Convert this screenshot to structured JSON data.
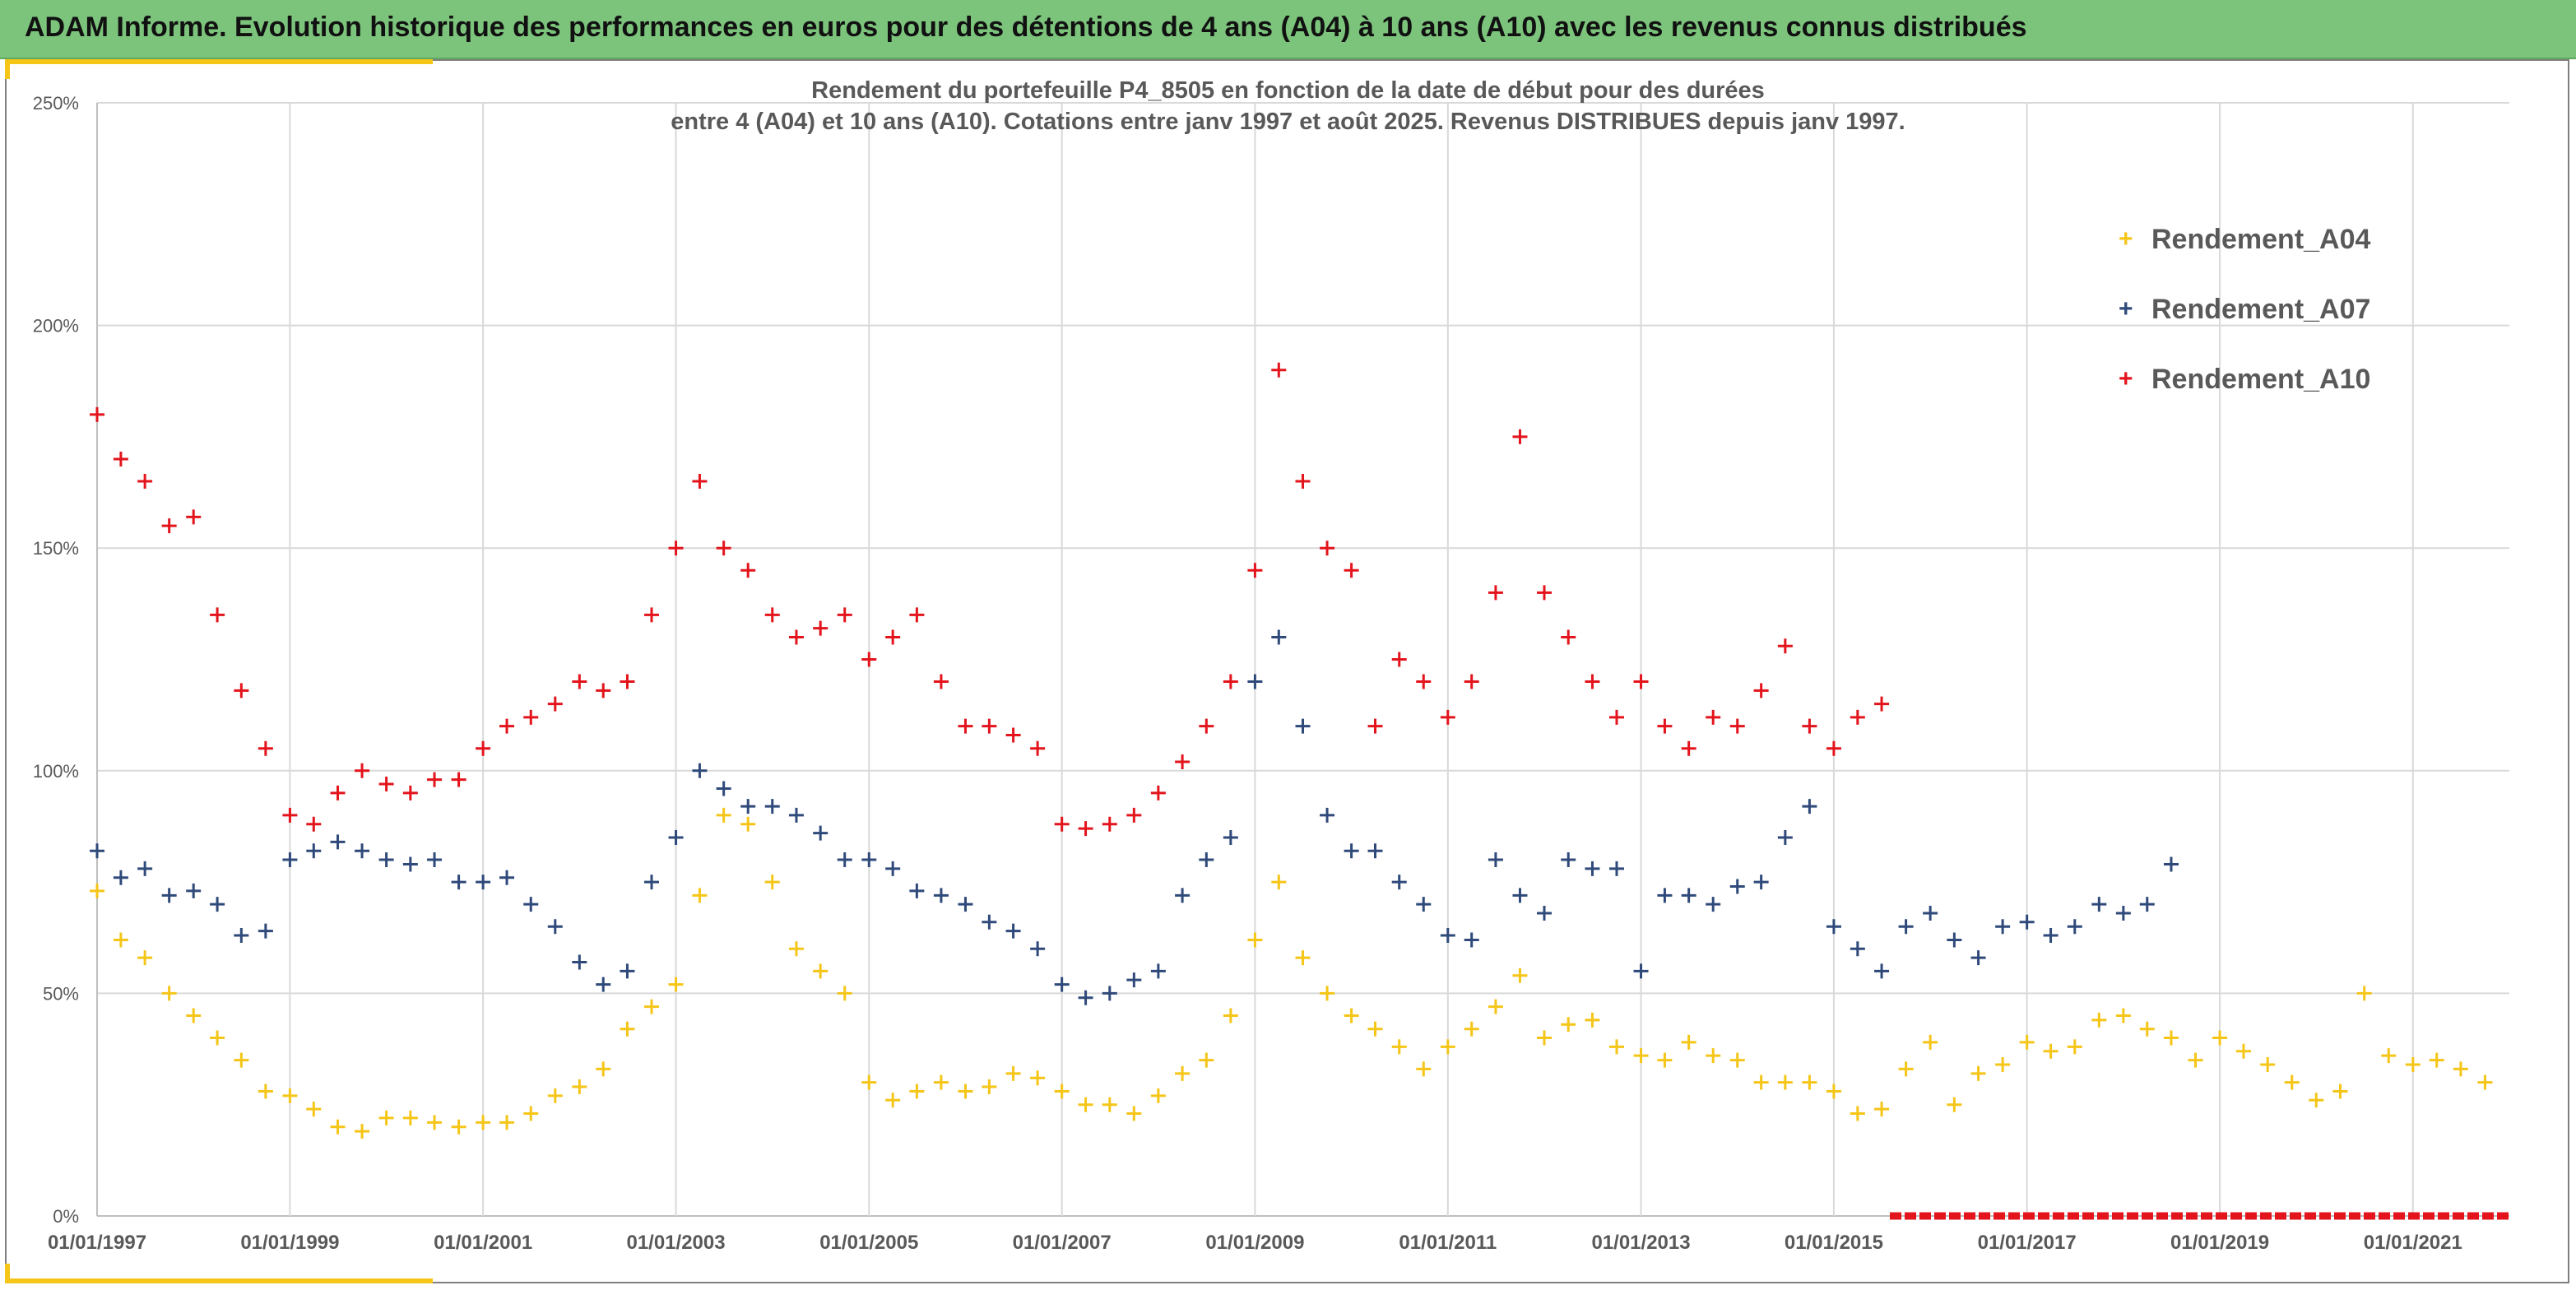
{
  "header": {
    "title": "ADAM Informe. Evolution historique des performances en euros pour des détentions de 4 ans (A04) à 10 ans (A10) avec les revenus connus distribués"
  },
  "colors": {
    "banner": "#7cc47c",
    "accent": "#f5c518",
    "A04": "#f5c518",
    "A07": "#2f4a7a",
    "A10": "#e3141c",
    "grid": "#d9d9d9",
    "axis_text": "#595959"
  },
  "chart_data": {
    "type": "scatter",
    "title": "Rendement du portefeuille P4_8505 en fonction de la date de début pour des durées",
    "subtitle": "entre 4 (A04) et 10 ans (A10). Cotations entre janv 1997 et août 2025. Revenus DISTRIBUES depuis janv 1997.",
    "xlabel": "",
    "ylabel": "",
    "x_axis_type": "date",
    "xlim": [
      "1997-01-01",
      "2022-01-01"
    ],
    "x_ticks": [
      "01/01/1997",
      "01/01/1999",
      "01/01/2001",
      "01/01/2003",
      "01/01/2005",
      "01/01/2007",
      "01/01/2009",
      "01/01/2011",
      "01/01/2013",
      "01/01/2015",
      "01/01/2017",
      "01/01/2019",
      "01/01/2021"
    ],
    "ylim": [
      0,
      2.5
    ],
    "y_ticks": [
      "0%",
      "50%",
      "100%",
      "150%",
      "200%",
      "250%"
    ],
    "grid": true,
    "legend_position": "top-right",
    "marker": "+",
    "series": [
      {
        "name": "Rendement_A04",
        "color": "#f5c518",
        "x": [
          "1997-01-01",
          "1997-04-01",
          "1997-07-01",
          "1997-10-01",
          "1998-01-01",
          "1998-04-01",
          "1998-07-01",
          "1998-10-01",
          "1999-01-01",
          "1999-04-01",
          "1999-07-01",
          "1999-10-01",
          "2000-01-01",
          "2000-04-01",
          "2000-07-01",
          "2000-10-01",
          "2001-01-01",
          "2001-04-01",
          "2001-07-01",
          "2001-10-01",
          "2002-01-01",
          "2002-04-01",
          "2002-07-01",
          "2002-10-01",
          "2003-01-01",
          "2003-04-01",
          "2003-07-01",
          "2003-10-01",
          "2004-01-01",
          "2004-04-01",
          "2004-07-01",
          "2004-10-01",
          "2005-01-01",
          "2005-04-01",
          "2005-07-01",
          "2005-10-01",
          "2006-01-01",
          "2006-04-01",
          "2006-07-01",
          "2006-10-01",
          "2007-01-01",
          "2007-04-01",
          "2007-07-01",
          "2007-10-01",
          "2008-01-01",
          "2008-04-01",
          "2008-07-01",
          "2008-10-01",
          "2009-01-01",
          "2009-04-01",
          "2009-07-01",
          "2009-10-01",
          "2010-01-01",
          "2010-04-01",
          "2010-07-01",
          "2010-10-01",
          "2011-01-01",
          "2011-04-01",
          "2011-07-01",
          "2011-10-01",
          "2012-01-01",
          "2012-04-01",
          "2012-07-01",
          "2012-10-01",
          "2013-01-01",
          "2013-04-01",
          "2013-07-01",
          "2013-10-01",
          "2014-01-01",
          "2014-04-01",
          "2014-07-01",
          "2014-10-01",
          "2015-01-01",
          "2015-04-01",
          "2015-07-01",
          "2015-10-01",
          "2016-01-01",
          "2016-04-01",
          "2016-07-01",
          "2016-10-01",
          "2017-01-01",
          "2017-04-01",
          "2017-07-01",
          "2017-10-01",
          "2018-01-01",
          "2018-04-01",
          "2018-07-01",
          "2018-10-01",
          "2019-01-01",
          "2019-04-01",
          "2019-07-01",
          "2019-10-01",
          "2020-01-01",
          "2020-04-01",
          "2020-07-01",
          "2020-10-01",
          "2021-01-01",
          "2021-04-01",
          "2021-07-01",
          "2021-10-01"
        ],
        "y": [
          0.73,
          0.62,
          0.58,
          0.5,
          0.45,
          0.4,
          0.35,
          0.28,
          0.27,
          0.24,
          0.2,
          0.19,
          0.22,
          0.22,
          0.21,
          0.2,
          0.21,
          0.21,
          0.23,
          0.27,
          0.29,
          0.33,
          0.42,
          0.47,
          0.52,
          0.72,
          0.9,
          0.88,
          0.75,
          0.6,
          0.55,
          0.5,
          0.3,
          0.26,
          0.28,
          0.3,
          0.28,
          0.29,
          0.32,
          0.31,
          0.28,
          0.25,
          0.25,
          0.23,
          0.27,
          0.32,
          0.35,
          0.45,
          0.62,
          0.75,
          0.58,
          0.5,
          0.45,
          0.42,
          0.38,
          0.33,
          0.38,
          0.42,
          0.47,
          0.54,
          0.4,
          0.43,
          0.44,
          0.38,
          0.36,
          0.35,
          0.39,
          0.36,
          0.35,
          0.3,
          0.3,
          0.3,
          0.28,
          0.23,
          0.24,
          0.33,
          0.39,
          0.25,
          0.32,
          0.34,
          0.39,
          0.37,
          0.38,
          0.44,
          0.45,
          0.42,
          0.4,
          0.35,
          0.4,
          0.37,
          0.34,
          0.3,
          0.26,
          0.28,
          0.5,
          0.36,
          0.34,
          0.35,
          0.33,
          0.3
        ]
      },
      {
        "name": "Rendement_A07",
        "color": "#2f4a7a",
        "x": [
          "1997-01-01",
          "1997-04-01",
          "1997-07-01",
          "1997-10-01",
          "1998-01-01",
          "1998-04-01",
          "1998-07-01",
          "1998-10-01",
          "1999-01-01",
          "1999-04-01",
          "1999-07-01",
          "1999-10-01",
          "2000-01-01",
          "2000-04-01",
          "2000-07-01",
          "2000-10-01",
          "2001-01-01",
          "2001-04-01",
          "2001-07-01",
          "2001-10-01",
          "2002-01-01",
          "2002-04-01",
          "2002-07-01",
          "2002-10-01",
          "2003-01-01",
          "2003-04-01",
          "2003-07-01",
          "2003-10-01",
          "2004-01-01",
          "2004-04-01",
          "2004-07-01",
          "2004-10-01",
          "2005-01-01",
          "2005-04-01",
          "2005-07-01",
          "2005-10-01",
          "2006-01-01",
          "2006-04-01",
          "2006-07-01",
          "2006-10-01",
          "2007-01-01",
          "2007-04-01",
          "2007-07-01",
          "2007-10-01",
          "2008-01-01",
          "2008-04-01",
          "2008-07-01",
          "2008-10-01",
          "2009-01-01",
          "2009-04-01",
          "2009-07-01",
          "2009-10-01",
          "2010-01-01",
          "2010-04-01",
          "2010-07-01",
          "2010-10-01",
          "2011-01-01",
          "2011-04-01",
          "2011-07-01",
          "2011-10-01",
          "2012-01-01",
          "2012-04-01",
          "2012-07-01",
          "2012-10-01",
          "2013-01-01",
          "2013-04-01",
          "2013-07-01",
          "2013-10-01",
          "2014-01-01",
          "2014-04-01",
          "2014-07-01",
          "2014-10-01",
          "2015-01-01",
          "2015-04-01",
          "2015-07-01",
          "2015-10-01",
          "2016-01-01",
          "2016-04-01",
          "2016-07-01",
          "2016-10-01",
          "2017-01-01",
          "2017-04-01",
          "2017-07-01",
          "2017-10-01",
          "2018-01-01",
          "2018-04-01",
          "2018-07-01"
        ],
        "y": [
          0.82,
          0.76,
          0.78,
          0.72,
          0.73,
          0.7,
          0.63,
          0.64,
          0.8,
          0.82,
          0.84,
          0.82,
          0.8,
          0.79,
          0.8,
          0.75,
          0.75,
          0.76,
          0.7,
          0.65,
          0.57,
          0.52,
          0.55,
          0.75,
          0.85,
          1.0,
          0.96,
          0.92,
          0.92,
          0.9,
          0.86,
          0.8,
          0.8,
          0.78,
          0.73,
          0.72,
          0.7,
          0.66,
          0.64,
          0.6,
          0.52,
          0.49,
          0.5,
          0.53,
          0.55,
          0.72,
          0.8,
          0.85,
          1.2,
          1.3,
          1.1,
          0.9,
          0.82,
          0.82,
          0.75,
          0.7,
          0.63,
          0.62,
          0.8,
          0.72,
          0.68,
          0.8,
          0.78,
          0.78,
          0.55,
          0.72,
          0.72,
          0.7,
          0.74,
          0.75,
          0.85,
          0.92,
          0.65,
          0.6,
          0.55,
          0.65,
          0.68,
          0.62,
          0.58,
          0.65,
          0.66,
          0.63,
          0.65,
          0.7,
          0.68,
          0.7,
          0.79
        ]
      },
      {
        "name": "Rendement_A10",
        "color": "#e3141c",
        "x": [
          "1997-01-01",
          "1997-04-01",
          "1997-07-01",
          "1997-10-01",
          "1998-01-01",
          "1998-04-01",
          "1998-07-01",
          "1998-10-01",
          "1999-01-01",
          "1999-04-01",
          "1999-07-01",
          "1999-10-01",
          "2000-01-01",
          "2000-04-01",
          "2000-07-01",
          "2000-10-01",
          "2001-01-01",
          "2001-04-01",
          "2001-07-01",
          "2001-10-01",
          "2002-01-01",
          "2002-04-01",
          "2002-07-01",
          "2002-10-01",
          "2003-01-01",
          "2003-04-01",
          "2003-07-01",
          "2003-10-01",
          "2004-01-01",
          "2004-04-01",
          "2004-07-01",
          "2004-10-01",
          "2005-01-01",
          "2005-04-01",
          "2005-07-01",
          "2005-10-01",
          "2006-01-01",
          "2006-04-01",
          "2006-07-01",
          "2006-10-01",
          "2007-01-01",
          "2007-04-01",
          "2007-07-01",
          "2007-10-01",
          "2008-01-01",
          "2008-04-01",
          "2008-07-01",
          "2008-10-01",
          "2009-01-01",
          "2009-04-01",
          "2009-07-01",
          "2009-10-01",
          "2010-01-01",
          "2010-04-01",
          "2010-07-01",
          "2010-10-01",
          "2011-01-01",
          "2011-04-01",
          "2011-07-01",
          "2011-10-01",
          "2012-01-01",
          "2012-04-01",
          "2012-07-01",
          "2012-10-01",
          "2013-01-01",
          "2013-04-01",
          "2013-07-01",
          "2013-10-01",
          "2014-01-01",
          "2014-04-01",
          "2014-07-01",
          "2014-10-01",
          "2015-01-01",
          "2015-04-01",
          "2015-07-01"
        ],
        "y": [
          1.8,
          1.7,
          1.65,
          1.55,
          1.57,
          1.35,
          1.18,
          1.05,
          0.9,
          0.88,
          0.95,
          1.0,
          0.97,
          0.95,
          0.98,
          0.98,
          1.05,
          1.1,
          1.12,
          1.15,
          1.2,
          1.18,
          1.2,
          1.35,
          1.5,
          1.65,
          1.5,
          1.45,
          1.35,
          1.3,
          1.32,
          1.35,
          1.25,
          1.3,
          1.35,
          1.2,
          1.1,
          1.1,
          1.08,
          1.05,
          0.88,
          0.87,
          0.88,
          0.9,
          0.95,
          1.02,
          1.1,
          1.2,
          1.45,
          1.9,
          1.65,
          1.5,
          1.45,
          1.1,
          1.25,
          1.2,
          1.12,
          1.2,
          1.4,
          1.75,
          1.4,
          1.3,
          1.2,
          1.12,
          1.2,
          1.1,
          1.05,
          1.12,
          1.1,
          1.18,
          1.28,
          1.1,
          1.05,
          1.12,
          1.15
        ]
      }
    ],
    "distribution_marks_x": [
      "2015-08-01",
      "2022-01-01"
    ]
  }
}
